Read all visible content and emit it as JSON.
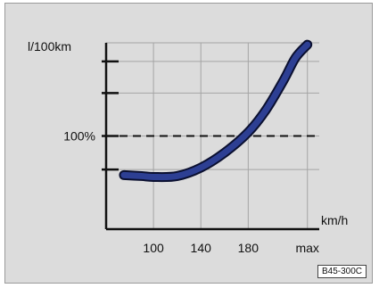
{
  "figure_code": "B45-300C",
  "chart_data": {
    "type": "line",
    "ylabel": "l/100km",
    "xlabel": "km/h",
    "x_tick_labels": [
      "100",
      "140",
      "180",
      "max"
    ],
    "x_ticks": [
      100,
      140,
      180,
      230
    ],
    "xlim": [
      60,
      240
    ],
    "ylim": [
      0,
      100
    ],
    "y_ticks": [
      32,
      50,
      73,
      90
    ],
    "reference_line": {
      "label": "100%",
      "y": 50,
      "style": "dashed"
    },
    "grid": true,
    "series": [
      {
        "color": "#2d3f93",
        "x": [
          75,
          90,
          100,
          120,
          140,
          160,
          180,
          195,
          210,
          220,
          230
        ],
        "y": [
          29,
          28.5,
          28,
          28.5,
          33,
          41,
          52,
          64,
          80,
          92,
          99
        ]
      }
    ]
  }
}
